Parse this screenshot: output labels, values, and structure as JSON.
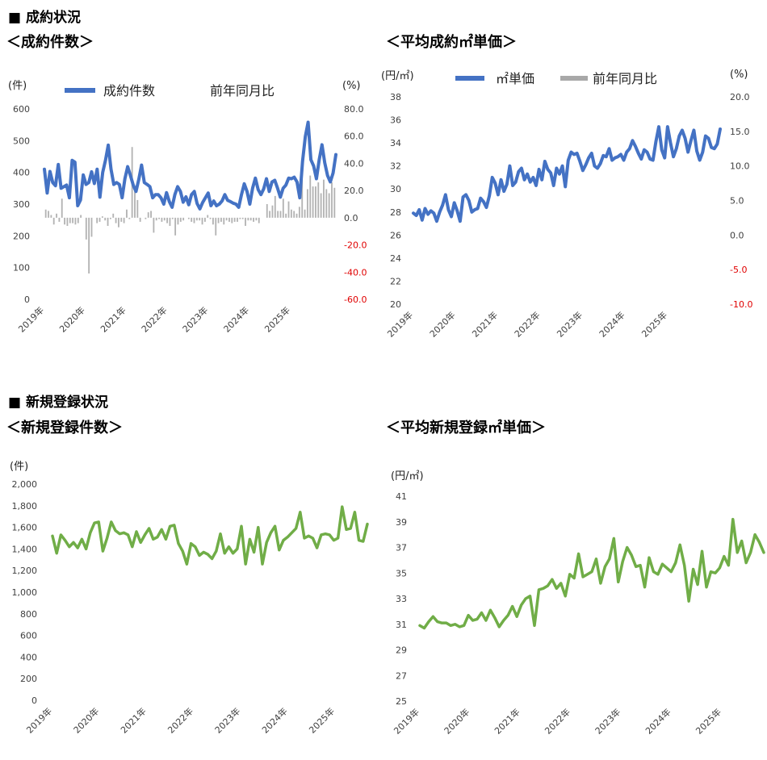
{
  "section1": {
    "title": "■ 成約状況"
  },
  "section2": {
    "title": "■ 新規登録状況"
  },
  "years": [
    "2019年",
    "2020年",
    "2021年",
    "2022年",
    "2023年",
    "2024年",
    "2025年"
  ],
  "chart_data": [
    {
      "id": "contracts",
      "type": "line+bar",
      "title": "＜成約件数＞",
      "left_unit": "(件)",
      "right_unit": "(%)",
      "left_ylim": [
        0,
        600
      ],
      "left_ticks": [
        "0",
        "100",
        "200",
        "300",
        "400",
        "500",
        "600"
      ],
      "right_ylim": [
        -60,
        80
      ],
      "right_ticks": [
        "-60.0",
        "-40.0",
        "-20.0",
        "0.0",
        "20.0",
        "40.0",
        "60.0",
        "80.0"
      ],
      "legend": {
        "line": "成約件数",
        "bar": "前年同月比"
      },
      "colors": {
        "line": "#4472c4",
        "bar": "#b3b3b3",
        "negative_tick": "#e00000"
      },
      "line_values": [
        410,
        335,
        403,
        368,
        358,
        425,
        350,
        355,
        360,
        320,
        438,
        432,
        295,
        313,
        392,
        362,
        368,
        402,
        365,
        410,
        322,
        400,
        438,
        486,
        410,
        362,
        368,
        362,
        320,
        380,
        418,
        390,
        360,
        340,
        378,
        423,
        368,
        362,
        355,
        320,
        330,
        330,
        320,
        300,
        336,
        308,
        290,
        330,
        355,
        340,
        306,
        323,
        298,
        330,
        340,
        302,
        285,
        305,
        320,
        335,
        295,
        310,
        295,
        300,
        310,
        330,
        312,
        308,
        303,
        300,
        290,
        330,
        364,
        340,
        300,
        350,
        382,
        346,
        330,
        348,
        380,
        340,
        370,
        375,
        350,
        322,
        350,
        360,
        382,
        380,
        385,
        370,
        320,
        435,
        513,
        558,
        440,
        420,
        380,
        440,
        487,
        430,
        390,
        370,
        398,
        456
      ],
      "bar_values": [
        6,
        5,
        2,
        -5,
        3,
        -3,
        14,
        -5,
        -6,
        -4,
        -4,
        -5,
        -4,
        2,
        0,
        -16,
        -41,
        -14,
        0,
        -4,
        -3,
        1,
        -2,
        -6,
        -1,
        3,
        -4,
        -7,
        -3,
        -4,
        6,
        -1,
        52,
        20,
        13,
        -3,
        0,
        -1,
        4,
        5,
        -11,
        -2,
        -1,
        -3,
        -2,
        -4,
        -6,
        -1,
        -13,
        -5,
        -3,
        -2,
        0,
        -1,
        -3,
        -4,
        -2,
        -2,
        -5,
        -3,
        2,
        -1,
        -5,
        -13,
        -4,
        -3,
        -5,
        -2,
        -3,
        -4,
        -3,
        -3,
        -1,
        -1,
        -6,
        -2,
        -2,
        -3,
        -2,
        -4,
        0,
        0,
        10,
        5,
        9,
        16,
        5,
        5,
        14,
        3,
        12,
        6,
        5,
        3,
        8,
        28,
        6,
        21,
        31,
        23,
        23,
        26,
        18,
        28,
        21,
        18,
        26,
        22
      ]
    },
    {
      "id": "avg_unit_price_contract",
      "type": "line+bar",
      "title": "＜平均成約㎡単価＞",
      "left_unit": "(円/㎡)",
      "right_unit": "(%)",
      "left_ylim": [
        20,
        38
      ],
      "left_ticks": [
        "20",
        "22",
        "24",
        "26",
        "28",
        "30",
        "32",
        "34",
        "36",
        "38"
      ],
      "right_ylim": [
        -10,
        20
      ],
      "right_ticks": [
        "-10.0",
        "-5.0",
        "0.0",
        "5.0",
        "10.0",
        "15.0",
        "20.0"
      ],
      "legend": {
        "line": "㎡単価",
        "bar": "前年同月比"
      },
      "colors": {
        "line": "#4472c4",
        "bar": "#a8a8a8",
        "negative_tick": "#e00000"
      },
      "line_values": [
        27.9,
        27.7,
        28.2,
        27.3,
        28.3,
        27.8,
        28.1,
        27.9,
        27.2,
        28.0,
        28.6,
        29.5,
        28.2,
        27.6,
        28.8,
        28.1,
        27.2,
        29.3,
        29.5,
        29.0,
        28.0,
        28.2,
        28.3,
        29.2,
        28.9,
        28.4,
        29.4,
        31.0,
        30.5,
        29.5,
        30.8,
        29.8,
        30.4,
        32.0,
        30.3,
        30.6,
        31.5,
        31.8,
        30.8,
        31.3,
        30.6,
        31.0,
        30.3,
        31.7,
        30.8,
        32.4,
        31.7,
        31.4,
        30.3,
        31.8,
        31.3,
        32.0,
        30.2,
        32.5,
        33.2,
        33.0,
        33.1,
        32.4,
        31.6,
        32.1,
        32.7,
        33.1,
        32.0,
        31.8,
        32.2,
        32.9,
        32.8,
        33.5,
        32.5,
        32.7,
        32.8,
        33.0,
        32.5,
        33.2,
        33.5,
        34.2,
        33.7,
        33.1,
        32.6,
        33.4,
        33.2,
        32.6,
        32.5,
        34.1,
        35.4,
        33.4,
        32.7,
        35.4,
        34.0,
        32.8,
        33.5,
        34.6,
        35.1,
        34.4,
        33.2,
        34.2,
        35.1,
        33.3,
        32.5,
        33.2,
        34.6,
        34.4,
        33.6,
        33.5,
        33.9,
        35.2
      ]
    },
    {
      "id": "new_listings",
      "type": "line",
      "title": "＜新規登録件数＞",
      "left_unit": "(件)",
      "left_ylim": [
        0,
        2000
      ],
      "left_ticks": [
        "0",
        "200",
        "400",
        "600",
        "800",
        "1,000",
        "1,200",
        "1,400",
        "1,600",
        "1,800",
        "2,000"
      ],
      "colors": {
        "line": "#70ad47"
      },
      "line_values": [
        1520,
        1360,
        1530,
        1480,
        1420,
        1460,
        1410,
        1490,
        1400,
        1550,
        1640,
        1650,
        1380,
        1500,
        1650,
        1570,
        1540,
        1550,
        1530,
        1420,
        1560,
        1460,
        1530,
        1590,
        1490,
        1510,
        1580,
        1490,
        1610,
        1620,
        1450,
        1380,
        1260,
        1450,
        1420,
        1340,
        1370,
        1350,
        1310,
        1380,
        1540,
        1360,
        1420,
        1360,
        1400,
        1610,
        1260,
        1490,
        1370,
        1600,
        1260,
        1460,
        1550,
        1610,
        1390,
        1480,
        1510,
        1550,
        1590,
        1740,
        1500,
        1520,
        1500,
        1410,
        1530,
        1540,
        1530,
        1480,
        1500,
        1790,
        1580,
        1590,
        1740,
        1480,
        1470,
        1630
      ]
    },
    {
      "id": "avg_unit_price_new",
      "type": "line",
      "title": "＜平均新規登録㎡単価＞",
      "left_unit": "(円/㎡)",
      "left_ylim": [
        25,
        41
      ],
      "left_ticks": [
        "25",
        "27",
        "29",
        "31",
        "33",
        "35",
        "37",
        "39",
        "41"
      ],
      "colors": {
        "line": "#70ad47"
      },
      "line_values": [
        30.9,
        30.7,
        31.2,
        31.6,
        31.2,
        31.1,
        31.1,
        30.9,
        31.0,
        30.8,
        30.9,
        31.7,
        31.3,
        31.4,
        31.9,
        31.3,
        32.1,
        31.5,
        30.8,
        31.3,
        31.7,
        32.4,
        31.6,
        32.5,
        33.0,
        33.2,
        30.9,
        33.7,
        33.8,
        34.0,
        34.5,
        33.8,
        34.2,
        33.2,
        34.9,
        34.6,
        36.5,
        34.7,
        34.9,
        35.1,
        36.1,
        34.2,
        35.5,
        36.1,
        37.7,
        34.3,
        35.9,
        37.0,
        36.4,
        35.5,
        35.6,
        33.9,
        36.2,
        35.1,
        34.9,
        35.7,
        35.4,
        35.1,
        35.8,
        37.2,
        35.6,
        32.8,
        35.3,
        34.1,
        36.7,
        33.9,
        35.1,
        35.0,
        35.4,
        36.3,
        35.6,
        39.2,
        36.6,
        37.5,
        35.8,
        36.6,
        38.0,
        37.4,
        36.6
      ]
    }
  ]
}
